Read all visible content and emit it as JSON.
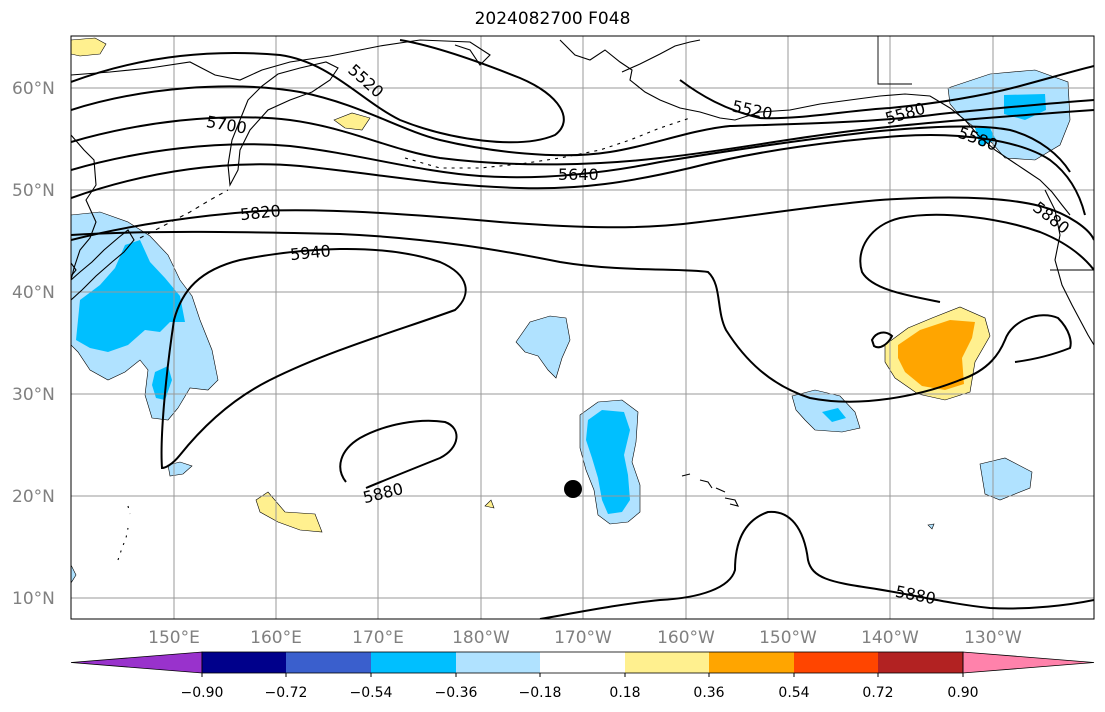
{
  "title": "2024082700 F048",
  "latitude_labels": [
    "60°N",
    "50°N",
    "40°N",
    "30°N",
    "20°N",
    "10°N"
  ],
  "longitude_labels": [
    "150°E",
    "160°E",
    "170°E",
    "180°W",
    "170°W",
    "160°W",
    "150°W",
    "140°W",
    "130°W"
  ],
  "contour_labels": [
    "5520",
    "5520",
    "5580",
    "5580",
    "5640",
    "5700",
    "5820",
    "5940",
    "5880",
    "5880",
    "5880"
  ],
  "colorbar": {
    "tick_labels": [
      "−0.90",
      "−0.72",
      "−0.54",
      "−0.36",
      "−0.18",
      "0.18",
      "0.36",
      "0.54",
      "0.72",
      "0.90"
    ],
    "colors": [
      "#9932cc",
      "#00008b",
      "#3a5fcd",
      "#00bfff",
      "#b0e2ff",
      "#ffffff",
      "#fff08f",
      "#ffa500",
      "#ff4500",
      "#b22222",
      "#ff82ab"
    ]
  },
  "colors": {
    "light_blue": "#b0e2ff",
    "deep_sky_blue": "#00bfff",
    "light_yellow": "#fff08f",
    "orange": "#ffa500",
    "contour": "#000000",
    "grid": "#999999"
  },
  "markers": [
    {
      "name": "black-dot",
      "lon": -171,
      "lat": 20.7
    }
  ]
}
